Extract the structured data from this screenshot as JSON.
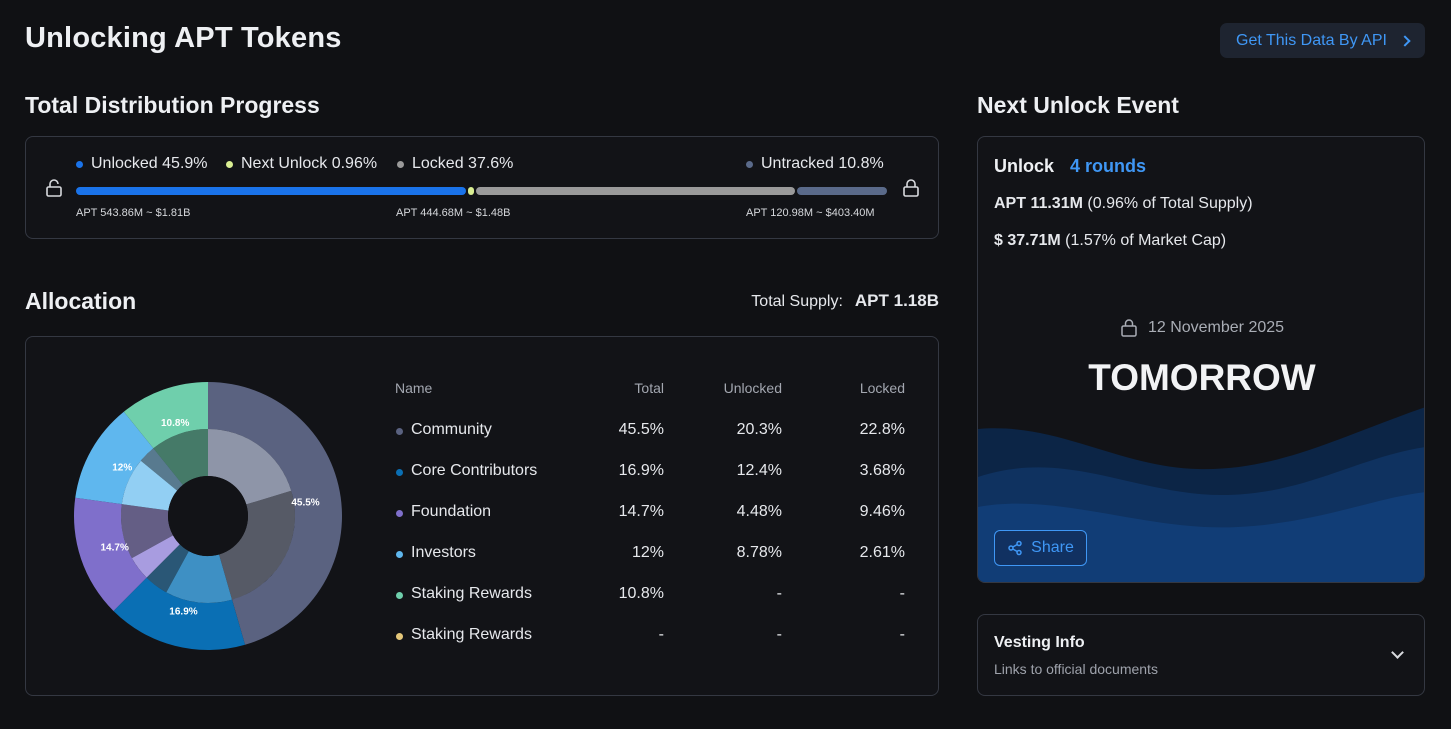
{
  "page": {
    "title": "Unlocking APT Tokens",
    "api_button": "Get This Data By API"
  },
  "progress": {
    "title": "Total Distribution Progress",
    "legend": {
      "unlocked": "Unlocked 45.9%",
      "next_unlock": "Next Unlock 0.96%",
      "locked": "Locked 37.6%",
      "untracked": "Untracked 10.8%"
    },
    "values": {
      "unlocked": 45.9,
      "next_unlock": 0.96,
      "locked": 37.6,
      "untracked": 10.8
    },
    "sublabels": {
      "unlocked": "APT 543.86M ~ $1.81B",
      "locked": "APT 444.68M ~ $1.48B",
      "untracked": "APT 120.98M ~ $403.40M"
    },
    "colors": {
      "unlocked": "#1a73ea",
      "next_unlock": "#d9ee92",
      "locked": "#9a9a9a",
      "untracked": "#5a6a8a"
    }
  },
  "allocation": {
    "title": "Allocation",
    "total_supply_label": "Total Supply:",
    "total_supply_value": "APT 1.18B",
    "columns": [
      "Name",
      "Total",
      "Unlocked",
      "Locked"
    ],
    "rows": [
      {
        "name": "Community",
        "total": "45.5%",
        "unlocked": "20.3%",
        "locked": "22.8%",
        "color": "#5a6280"
      },
      {
        "name": "Core Contributors",
        "total": "16.9%",
        "unlocked": "12.4%",
        "locked": "3.68%",
        "color": "#0a6fb4"
      },
      {
        "name": "Foundation",
        "total": "14.7%",
        "unlocked": "4.48%",
        "locked": "9.46%",
        "color": "#7f6fcb"
      },
      {
        "name": "Investors",
        "total": "12%",
        "unlocked": "8.78%",
        "locked": "2.61%",
        "color": "#5fb7ee"
      },
      {
        "name": "Staking Rewards",
        "total": "10.8%",
        "unlocked": "-",
        "locked": "-",
        "color": "#6fcfac"
      },
      {
        "name": "Staking Rewards",
        "total": "-",
        "unlocked": "-",
        "locked": "-",
        "color": "#e4c77a"
      }
    ]
  },
  "chart_data": {
    "type": "pie",
    "categories": [
      "Community",
      "Core Contributors",
      "Foundation",
      "Investors",
      "Staking Rewards"
    ],
    "values": [
      45.5,
      16.9,
      14.7,
      12,
      10.8
    ],
    "inner_unlocked": [
      20.3,
      12.4,
      4.48,
      8.78,
      0
    ],
    "slice_labels": [
      "45.5%",
      "16.9%",
      "14.7%",
      "12%",
      "10.8%"
    ],
    "outer_colors": [
      "#5a6280",
      "#0a6fb4",
      "#7f6fcb",
      "#5fb7ee",
      "#6fcfac"
    ],
    "inner_colors": [
      "#8e95a8",
      "#3e90c4",
      "#a89ce0",
      "#92cff3",
      "#6fcfac"
    ]
  },
  "next_unlock": {
    "title": "Next Unlock Event",
    "unlock_label": "Unlock",
    "rounds": "4 rounds",
    "amount_strong": "APT 11.31M",
    "amount_note": "(0.96% of Total Supply)",
    "value_strong": "$ 37.71M",
    "value_note": "(1.57% of Market Cap)",
    "date": "12 November 2025",
    "when": "TOMORROW",
    "share": "Share"
  },
  "vesting": {
    "title": "Vesting Info",
    "subtitle": "Links to official documents"
  }
}
